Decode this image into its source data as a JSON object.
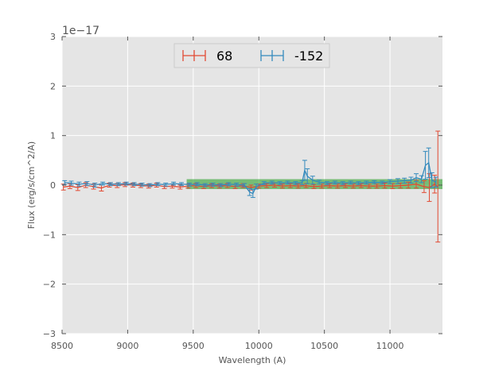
{
  "chart_data": {
    "type": "line",
    "title": "",
    "xlabel": "Wavelength (A)",
    "ylabel": "Flux (erg/s/cm^2/A)",
    "y_offset_label": "1e−17",
    "xlim": [
      8500,
      11400
    ],
    "ylim": [
      -3,
      3
    ],
    "xticks": [
      8500,
      9000,
      9500,
      10000,
      10500,
      11000
    ],
    "xtick_labels": [
      "8500",
      "9000",
      "9500",
      "10000",
      "10500",
      "11000"
    ],
    "yticks": [
      -3,
      -2,
      -1,
      0,
      1,
      2,
      3
    ],
    "ytick_labels": [
      "−3",
      "−2",
      "−1",
      "0",
      "1",
      "2",
      "3"
    ],
    "grid": true,
    "legend_position": "top-center",
    "highlight_band": {
      "x": [
        9450,
        11400
      ],
      "y": [
        -0.08,
        0.12
      ],
      "color": "#2ca02c"
    },
    "series": [
      {
        "name": "68",
        "color": "#e24a33",
        "points": [
          {
            "x": 8510,
            "y": -0.04,
            "err": 0.06
          },
          {
            "x": 8560,
            "y": -0.02,
            "err": 0.05
          },
          {
            "x": 8620,
            "y": -0.05,
            "err": 0.06
          },
          {
            "x": 8680,
            "y": 0.0,
            "err": 0.05
          },
          {
            "x": 8740,
            "y": -0.03,
            "err": 0.05
          },
          {
            "x": 8800,
            "y": -0.06,
            "err": 0.06
          },
          {
            "x": 8860,
            "y": 0.0,
            "err": 0.04
          },
          {
            "x": 8920,
            "y": -0.01,
            "err": 0.04
          },
          {
            "x": 8980,
            "y": 0.01,
            "err": 0.04
          },
          {
            "x": 9040,
            "y": 0.0,
            "err": 0.04
          },
          {
            "x": 9100,
            "y": -0.01,
            "err": 0.04
          },
          {
            "x": 9160,
            "y": -0.02,
            "err": 0.04
          },
          {
            "x": 9220,
            "y": 0.0,
            "err": 0.04
          },
          {
            "x": 9280,
            "y": -0.03,
            "err": 0.04
          },
          {
            "x": 9340,
            "y": -0.02,
            "err": 0.04
          },
          {
            "x": 9400,
            "y": -0.04,
            "err": 0.04
          },
          {
            "x": 9460,
            "y": -0.02,
            "err": 0.04
          },
          {
            "x": 9520,
            "y": -0.01,
            "err": 0.04
          },
          {
            "x": 9580,
            "y": -0.03,
            "err": 0.04
          },
          {
            "x": 9640,
            "y": -0.01,
            "err": 0.04
          },
          {
            "x": 9700,
            "y": -0.02,
            "err": 0.04
          },
          {
            "x": 9760,
            "y": -0.01,
            "err": 0.04
          },
          {
            "x": 9820,
            "y": -0.03,
            "err": 0.04
          },
          {
            "x": 9880,
            "y": -0.01,
            "err": 0.04
          },
          {
            "x": 9940,
            "y": -0.05,
            "err": 0.05
          },
          {
            "x": 10000,
            "y": -0.02,
            "err": 0.04
          },
          {
            "x": 10060,
            "y": -0.01,
            "err": 0.04
          },
          {
            "x": 10120,
            "y": 0.0,
            "err": 0.04
          },
          {
            "x": 10180,
            "y": -0.02,
            "err": 0.04
          },
          {
            "x": 10240,
            "y": -0.01,
            "err": 0.04
          },
          {
            "x": 10300,
            "y": -0.02,
            "err": 0.04
          },
          {
            "x": 10360,
            "y": -0.01,
            "err": 0.04
          },
          {
            "x": 10420,
            "y": -0.03,
            "err": 0.04
          },
          {
            "x": 10480,
            "y": -0.02,
            "err": 0.04
          },
          {
            "x": 10540,
            "y": -0.01,
            "err": 0.04
          },
          {
            "x": 10600,
            "y": -0.02,
            "err": 0.04
          },
          {
            "x": 10660,
            "y": -0.01,
            "err": 0.04
          },
          {
            "x": 10720,
            "y": -0.02,
            "err": 0.04
          },
          {
            "x": 10780,
            "y": -0.01,
            "err": 0.04
          },
          {
            "x": 10840,
            "y": -0.02,
            "err": 0.04
          },
          {
            "x": 10900,
            "y": -0.02,
            "err": 0.04
          },
          {
            "x": 10960,
            "y": -0.01,
            "err": 0.05
          },
          {
            "x": 11020,
            "y": -0.02,
            "err": 0.05
          },
          {
            "x": 11080,
            "y": -0.01,
            "err": 0.05
          },
          {
            "x": 11140,
            "y": 0.0,
            "err": 0.06
          },
          {
            "x": 11200,
            "y": 0.02,
            "err": 0.08
          },
          {
            "x": 11260,
            "y": -0.03,
            "err": 0.12
          },
          {
            "x": 11300,
            "y": -0.05,
            "err": 0.28
          },
          {
            "x": 11340,
            "y": 0.02,
            "err": 0.18
          },
          {
            "x": 11365,
            "y": -0.03,
            "err": 1.12
          }
        ]
      },
      {
        "name": "-152",
        "color": "#348abd",
        "points": [
          {
            "x": 8520,
            "y": 0.05,
            "err": 0.04
          },
          {
            "x": 8570,
            "y": 0.04,
            "err": 0.04
          },
          {
            "x": 8630,
            "y": 0.02,
            "err": 0.04
          },
          {
            "x": 8690,
            "y": 0.03,
            "err": 0.04
          },
          {
            "x": 8750,
            "y": 0.0,
            "err": 0.04
          },
          {
            "x": 8810,
            "y": 0.03,
            "err": 0.03
          },
          {
            "x": 8870,
            "y": 0.02,
            "err": 0.03
          },
          {
            "x": 8930,
            "y": 0.02,
            "err": 0.03
          },
          {
            "x": 8990,
            "y": 0.03,
            "err": 0.03
          },
          {
            "x": 9050,
            "y": 0.02,
            "err": 0.03
          },
          {
            "x": 9110,
            "y": 0.01,
            "err": 0.03
          },
          {
            "x": 9170,
            "y": 0.0,
            "err": 0.03
          },
          {
            "x": 9230,
            "y": 0.02,
            "err": 0.03
          },
          {
            "x": 9290,
            "y": 0.01,
            "err": 0.03
          },
          {
            "x": 9350,
            "y": 0.03,
            "err": 0.03
          },
          {
            "x": 9410,
            "y": 0.02,
            "err": 0.03
          },
          {
            "x": 9470,
            "y": 0.01,
            "err": 0.03
          },
          {
            "x": 9530,
            "y": 0.02,
            "err": 0.03
          },
          {
            "x": 9590,
            "y": 0.0,
            "err": 0.03
          },
          {
            "x": 9650,
            "y": 0.01,
            "err": 0.03
          },
          {
            "x": 9710,
            "y": 0.0,
            "err": 0.03
          },
          {
            "x": 9770,
            "y": 0.02,
            "err": 0.03
          },
          {
            "x": 9830,
            "y": 0.01,
            "err": 0.03
          },
          {
            "x": 9890,
            "y": 0.0,
            "err": 0.03
          },
          {
            "x": 9930,
            "y": -0.14,
            "err": 0.07
          },
          {
            "x": 9955,
            "y": -0.17,
            "err": 0.08
          },
          {
            "x": 9980,
            "y": -0.03,
            "err": 0.05
          },
          {
            "x": 10040,
            "y": 0.04,
            "err": 0.03
          },
          {
            "x": 10100,
            "y": 0.05,
            "err": 0.03
          },
          {
            "x": 10160,
            "y": 0.04,
            "err": 0.03
          },
          {
            "x": 10220,
            "y": 0.05,
            "err": 0.03
          },
          {
            "x": 10280,
            "y": 0.04,
            "err": 0.03
          },
          {
            "x": 10330,
            "y": 0.05,
            "err": 0.04
          },
          {
            "x": 10350,
            "y": 0.3,
            "err": 0.2
          },
          {
            "x": 10370,
            "y": 0.18,
            "err": 0.15
          },
          {
            "x": 10410,
            "y": 0.1,
            "err": 0.08
          },
          {
            "x": 10460,
            "y": 0.06,
            "err": 0.04
          },
          {
            "x": 10520,
            "y": 0.04,
            "err": 0.03
          },
          {
            "x": 10580,
            "y": 0.05,
            "err": 0.03
          },
          {
            "x": 10640,
            "y": 0.04,
            "err": 0.03
          },
          {
            "x": 10700,
            "y": 0.05,
            "err": 0.03
          },
          {
            "x": 10760,
            "y": 0.04,
            "err": 0.03
          },
          {
            "x": 10820,
            "y": 0.05,
            "err": 0.03
          },
          {
            "x": 10880,
            "y": 0.06,
            "err": 0.03
          },
          {
            "x": 10940,
            "y": 0.05,
            "err": 0.03
          },
          {
            "x": 11000,
            "y": 0.07,
            "err": 0.04
          },
          {
            "x": 11060,
            "y": 0.08,
            "err": 0.05
          },
          {
            "x": 11110,
            "y": 0.09,
            "err": 0.05
          },
          {
            "x": 11160,
            "y": 0.1,
            "err": 0.06
          },
          {
            "x": 11200,
            "y": 0.15,
            "err": 0.08
          },
          {
            "x": 11240,
            "y": 0.12,
            "err": 0.07
          },
          {
            "x": 11270,
            "y": 0.4,
            "err": 0.28
          },
          {
            "x": 11295,
            "y": 0.45,
            "err": 0.3
          },
          {
            "x": 11320,
            "y": 0.1,
            "err": 0.15
          },
          {
            "x": 11350,
            "y": 0.06,
            "err": 0.1
          }
        ]
      }
    ]
  }
}
